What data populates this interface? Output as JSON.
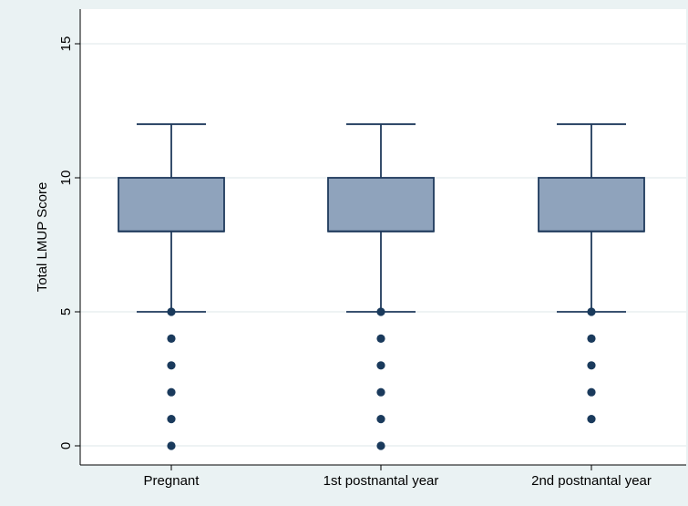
{
  "chart_data": {
    "type": "box",
    "title": "",
    "xlabel": "",
    "ylabel": "Total LMUP Score",
    "ylim": [
      0,
      15
    ],
    "yticks": [
      0,
      5,
      10,
      15
    ],
    "grid": true,
    "categories": [
      "Pregnant",
      "1st postnantal year",
      "2nd postnantal year"
    ],
    "boxes": [
      {
        "q1": 8,
        "median": 8,
        "q3": 10,
        "whisker_low": 5,
        "whisker_high": 12,
        "outliers": [
          5,
          4,
          3,
          2,
          1,
          0
        ]
      },
      {
        "q1": 8,
        "median": 8,
        "q3": 10,
        "whisker_low": 5,
        "whisker_high": 12,
        "outliers": [
          5,
          4,
          3,
          2,
          1,
          0
        ]
      },
      {
        "q1": 8,
        "median": 8,
        "q3": 10,
        "whisker_low": 5,
        "whisker_high": 12,
        "outliers": [
          5,
          4,
          3,
          2,
          1
        ]
      }
    ],
    "colors": {
      "box_fill": "#8fa3bc",
      "box_stroke": "#1f3a5c",
      "outlier": "#1a3a5c",
      "plot_bg": "#ffffff",
      "outer_bg": "#eaf2f3",
      "grid": "#e4ecee"
    }
  }
}
